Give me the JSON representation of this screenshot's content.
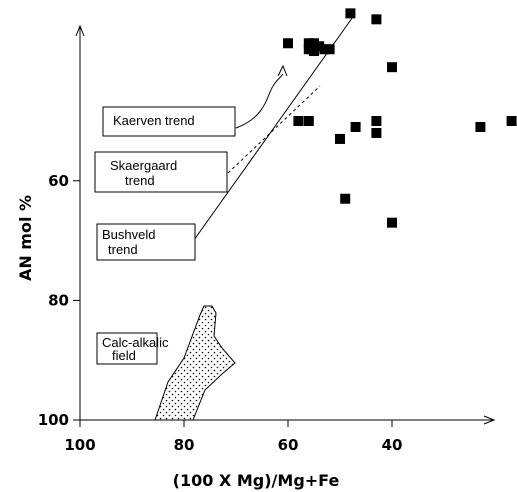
{
  "chart_data": {
    "type": "scatter",
    "title": "",
    "xlabel": "(100 X Mg)/Mg+Fe",
    "ylabel": "AN mol %",
    "x_reversed": true,
    "y_reversed": true,
    "xlim": [
      100,
      0
    ],
    "ylim": [
      100,
      32
    ],
    "x_ticks": [
      "100",
      "80",
      "60",
      "40"
    ],
    "y_ticks": [
      "60",
      "80",
      "100"
    ],
    "grid": false,
    "legend": "none",
    "series": [
      {
        "points": [
          {
            "x": 48,
            "y": 32
          },
          {
            "x": 43,
            "y": 33
          },
          {
            "x": 60,
            "y": 37
          },
          {
            "x": 56,
            "y": 37
          },
          {
            "x": 55,
            "y": 37
          },
          {
            "x": 54,
            "y": 37.5
          },
          {
            "x": 56,
            "y": 38
          },
          {
            "x": 55,
            "y": 38.3
          },
          {
            "x": 53,
            "y": 38
          },
          {
            "x": 52,
            "y": 38
          },
          {
            "x": 40,
            "y": 41
          },
          {
            "x": 58,
            "y": 50
          },
          {
            "x": 56,
            "y": 50
          },
          {
            "x": 47,
            "y": 51
          },
          {
            "x": 43,
            "y": 50
          },
          {
            "x": 43,
            "y": 52
          },
          {
            "x": 50,
            "y": 53
          },
          {
            "x": 49,
            "y": 63
          },
          {
            "x": 40,
            "y": 67
          },
          {
            "x": 23,
            "y": 51
          },
          {
            "x": 17,
            "y": 50
          }
        ]
      }
    ],
    "annotations": [
      {
        "label": "Kaerven trend",
        "style": "solid-curve"
      },
      {
        "label": "Skaergaard trend",
        "style": "dashed-line"
      },
      {
        "label": "Bushveld trend",
        "style": "solid-line"
      },
      {
        "label": "Calc-alkalic field",
        "style": "dotted-region"
      }
    ]
  },
  "labels": {
    "kaerven": "Kaerven trend",
    "skaergaard_1": "Skaergaard",
    "skaergaard_2": "trend",
    "bushveld_1": "Bushveld",
    "bushveld_2": "trend",
    "calc_1": "Calc-alkalic",
    "calc_2": "field"
  },
  "colors": {
    "ink": "#000000",
    "background": "#ffffff"
  }
}
